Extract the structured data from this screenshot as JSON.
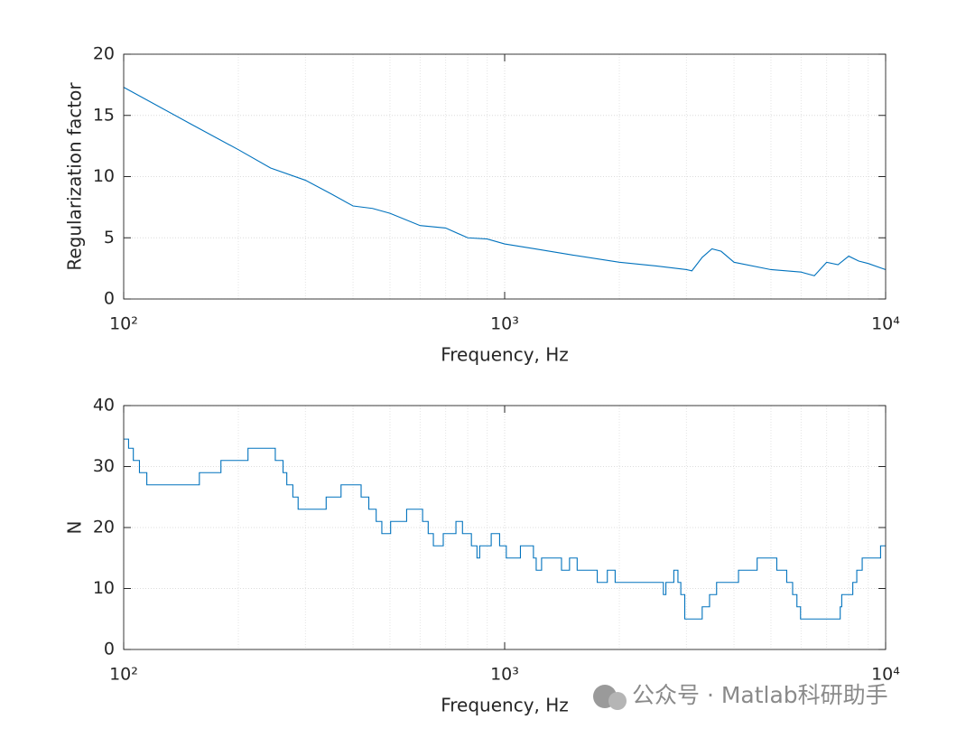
{
  "chart_data": [
    {
      "type": "line",
      "xlabel": "Frequency, Hz",
      "ylabel": "Regularization factor",
      "xscale": "log",
      "xlim": [
        100,
        10000
      ],
      "xticks": [
        {
          "value": 100,
          "label": "10²"
        },
        {
          "value": 1000,
          "label": "10³"
        },
        {
          "value": 10000,
          "label": "10⁴"
        }
      ],
      "ylim": [
        0,
        20
      ],
      "yticks": [
        0,
        5,
        10,
        15,
        20
      ],
      "grid": true,
      "minor_grid": true,
      "series": [
        {
          "color": "#0072bd",
          "x": [
            100,
            150,
            200,
            243,
            300,
            350,
            400,
            450,
            500,
            600,
            700,
            800,
            900,
            1000,
            1200,
            1500,
            2000,
            2500,
            3000,
            3100,
            3300,
            3500,
            3700,
            4000,
            5000,
            6000,
            6500,
            7000,
            7500,
            8000,
            8500,
            9000,
            10000
          ],
          "values": [
            17.3,
            14.3,
            12.2,
            10.7,
            9.7,
            8.6,
            7.6,
            7.4,
            7.0,
            6.0,
            5.8,
            5.0,
            4.9,
            4.5,
            4.1,
            3.6,
            3.0,
            2.7,
            2.4,
            2.3,
            3.4,
            4.1,
            3.9,
            3.0,
            2.4,
            2.2,
            1.9,
            3.0,
            2.8,
            3.5,
            3.1,
            2.9,
            2.4
          ]
        }
      ]
    },
    {
      "type": "line",
      "xlabel": "Frequency, Hz",
      "ylabel": "N",
      "xscale": "log",
      "xlim": [
        100,
        10000
      ],
      "xticks": [
        {
          "value": 100,
          "label": "10²"
        },
        {
          "value": 1000,
          "label": "10³"
        },
        {
          "value": 10000,
          "label": "10⁴"
        }
      ],
      "ylim": [
        0,
        40
      ],
      "yticks": [
        0,
        10,
        20,
        30,
        40
      ],
      "grid": true,
      "minor_grid": true,
      "series": [
        {
          "color": "#0072bd",
          "drawstyle": "steps-post",
          "x": [
            100,
            103,
            106,
            110,
            115,
            158,
            180,
            212,
            250,
            262,
            268,
            278,
            287,
            340,
            372,
            420,
            440,
            460,
            476,
            502,
            553,
            609,
            630,
            650,
            690,
            745,
            775,
            818,
            846,
            860,
            922,
            970,
            1010,
            1100,
            1190,
            1210,
            1250,
            1410,
            1480,
            1550,
            1750,
            1860,
            1950,
            2610,
            2650,
            2780,
            2850,
            2900,
            2970,
            3300,
            3450,
            3600,
            4110,
            4600,
            5180,
            5500,
            5700,
            5850,
            5980,
            7600,
            7670,
            8200,
            8400,
            8680,
            9700,
            10000
          ],
          "values": [
            34.5,
            33,
            31,
            29,
            27,
            29,
            31,
            33,
            31,
            29,
            27,
            25,
            23,
            25,
            27,
            25,
            23,
            21,
            19,
            21,
            23,
            21,
            19,
            17,
            19,
            21,
            19,
            17,
            15,
            17,
            19,
            17,
            15,
            17,
            15,
            13,
            15,
            13,
            15,
            13,
            11,
            13,
            11,
            9,
            11,
            13,
            11,
            9,
            5,
            7,
            9,
            11,
            13,
            15,
            13,
            11,
            9,
            7,
            5,
            7,
            9,
            11,
            13,
            15,
            17,
            17
          ]
        }
      ]
    }
  ],
  "watermark": "公众号 · Matlab科研助手"
}
